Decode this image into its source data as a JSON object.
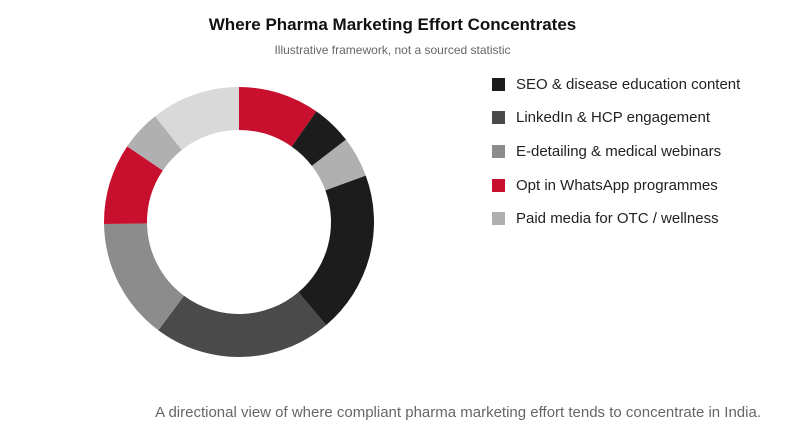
{
  "title": "Where Pharma Marketing Effort Concentrates",
  "subtitle": "Illustrative framework, not a sourced statistic",
  "caption": "A directional view of where compliant pharma marketing effort tends to concentrate in India.",
  "chart_data": {
    "type": "pie",
    "donut": true,
    "title": "Where Pharma Marketing Effort Concentrates",
    "subtitle": "Illustrative framework, not a sourced statistic",
    "legend_position": "right",
    "legend": [
      {
        "label": "SEO & disease education content",
        "color": "#1c1c1c"
      },
      {
        "label": "LinkedIn & HCP engagement",
        "color": "#4a4a4a"
      },
      {
        "label": "E-detailing & medical webinars",
        "color": "#8c8c8c"
      },
      {
        "label": "Opt in WhatsApp programmes",
        "color": "#c8102e"
      },
      {
        "label": "Paid media for OTC / wellness",
        "color": "#b0b0b0"
      }
    ],
    "slices": [
      {
        "value": 10,
        "color": "#c8102e"
      },
      {
        "value": 5,
        "color": "#1c1c1c"
      },
      {
        "value": 5,
        "color": "#b0b0b0"
      },
      {
        "value": 20,
        "color": "#1c1c1c"
      },
      {
        "value": 22,
        "color": "#4a4a4a"
      },
      {
        "value": 15,
        "color": "#8c8c8c"
      },
      {
        "value": 10,
        "color": "#c8102e"
      },
      {
        "value": 5,
        "color": "#b0b0b0"
      },
      {
        "value": 11,
        "color": "#d9d9d9"
      }
    ]
  }
}
